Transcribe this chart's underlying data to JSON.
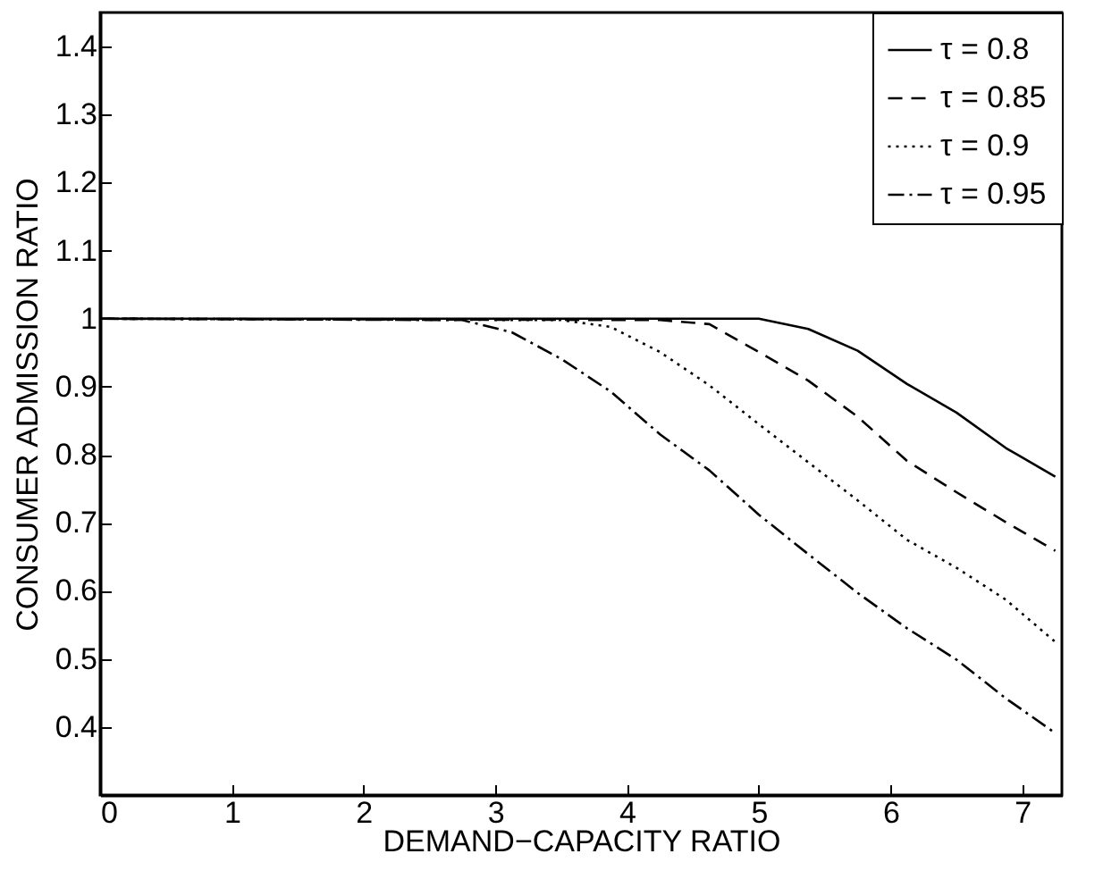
{
  "chart_data": {
    "type": "line",
    "xlabel": "DEMAND−CAPACITY RATIO",
    "ylabel": "CONSUMER ADMISSION RATIO",
    "xlim": [
      0,
      7.3
    ],
    "ylim": [
      0.3,
      1.45
    ],
    "xticks": [
      0,
      1,
      2,
      3,
      4,
      5,
      6,
      7
    ],
    "yticks": [
      0.4,
      0.5,
      0.6,
      0.7,
      0.8,
      0.9,
      1,
      1.1,
      1.2,
      1.3,
      1.4
    ],
    "grid": false,
    "legend": "top right",
    "marker": "none",
    "series": [
      {
        "name": "τ = 0.8",
        "color": "#000000",
        "line_style": "solid",
        "x": [
          0,
          5.0,
          5.375,
          5.75,
          6.125,
          6.5,
          6.875,
          7.25
        ],
        "values": [
          1.0,
          1.0,
          0.985,
          0.953,
          0.904,
          0.862,
          0.81,
          0.768
        ]
      },
      {
        "name": "τ = 0.85",
        "color": "#000000",
        "line_style": "dashed",
        "x": [
          0,
          4.25,
          4.625,
          5.0,
          5.375,
          5.75,
          6.125,
          6.5,
          6.875,
          7.25
        ],
        "values": [
          1.0,
          0.998,
          0.992,
          0.951,
          0.909,
          0.856,
          0.791,
          0.745,
          0.701,
          0.659
        ]
      },
      {
        "name": "τ = 0.9",
        "color": "#000000",
        "line_style": "dotted",
        "x": [
          0,
          3.5,
          3.875,
          4.25,
          4.625,
          5.0,
          5.375,
          5.75,
          6.125,
          6.5,
          6.875,
          7.25
        ],
        "values": [
          1.0,
          0.998,
          0.988,
          0.951,
          0.902,
          0.845,
          0.789,
          0.733,
          0.675,
          0.634,
          0.587,
          0.525
        ]
      },
      {
        "name": "τ = 0.95",
        "color": "#000000",
        "line_style": "dashdot",
        "x": [
          0,
          2.75,
          3.125,
          3.5,
          3.875,
          4.25,
          4.625,
          5.0,
          5.375,
          5.75,
          6.125,
          6.5,
          6.875,
          7.25
        ],
        "values": [
          1.0,
          0.998,
          0.98,
          0.941,
          0.893,
          0.83,
          0.777,
          0.712,
          0.654,
          0.597,
          0.545,
          0.499,
          0.442,
          0.391
        ]
      }
    ]
  }
}
